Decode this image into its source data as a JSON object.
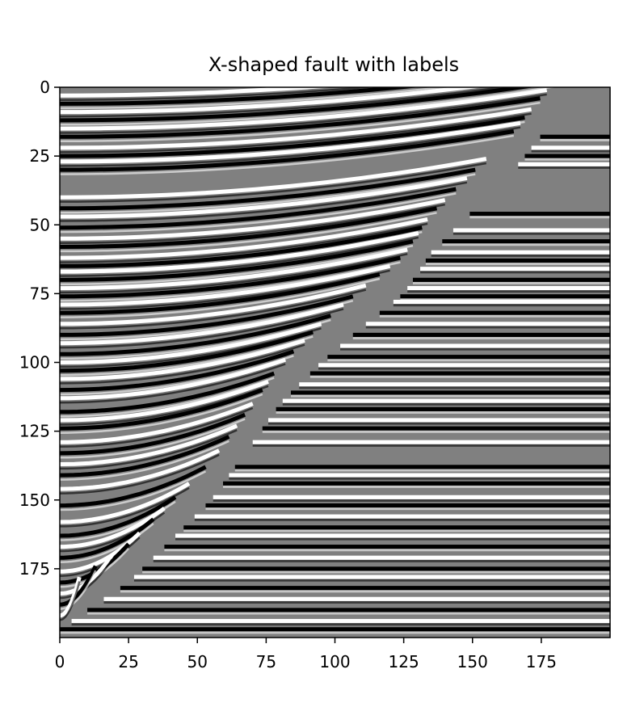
{
  "chart_data": {
    "type": "heatmap",
    "title": "X-shaped fault with labels",
    "xlabel": "",
    "ylabel": "",
    "colormap": "gray",
    "colors": {
      "low": "#000000",
      "mid": "#808080",
      "high": "#ffffff"
    },
    "grid": false,
    "xlim": [
      0,
      200
    ],
    "ylim": [
      200,
      0
    ],
    "x_ticks": [
      0,
      25,
      50,
      75,
      100,
      125,
      150,
      175
    ],
    "y_ticks": [
      0,
      25,
      50,
      75,
      100,
      125,
      150,
      175
    ],
    "x_tick_labels": [
      "0",
      "25",
      "50",
      "75",
      "100",
      "125",
      "150",
      "175"
    ],
    "y_tick_labels": [
      "0",
      "25",
      "50",
      "75",
      "100",
      "125",
      "150",
      "175"
    ],
    "fault_line": {
      "x": [
        200,
        190,
        177,
        165,
        150,
        135,
        125,
        110,
        95,
        80,
        68,
        55,
        40,
        25,
        10,
        0
      ],
      "y": [
        0,
        5,
        15,
        30,
        45,
        60,
        75,
        87,
        100,
        115,
        132,
        150,
        165,
        180,
        190,
        197
      ]
    },
    "upper_block_reflector_depths": [
      3,
      6,
      9,
      12,
      15,
      18,
      22,
      25,
      27,
      30,
      40,
      44,
      47,
      51,
      55,
      58,
      62,
      65,
      67,
      70,
      73,
      76,
      79,
      82,
      86,
      90,
      93,
      97,
      100,
      103,
      106,
      110,
      113,
      118,
      121,
      124,
      129,
      133,
      137,
      141,
      146,
      152,
      158,
      163,
      167,
      171,
      176,
      180,
      184,
      188,
      192
    ],
    "lower_block_reflector_depths": [
      18,
      22,
      25,
      28,
      46,
      52,
      56,
      60,
      63,
      66,
      70,
      73,
      76,
      78,
      82,
      86,
      90,
      94,
      98,
      101,
      104,
      108,
      111,
      114,
      117,
      121,
      124,
      129,
      138,
      141,
      144,
      149,
      152,
      156,
      160,
      163,
      167,
      171,
      175,
      178,
      182,
      186,
      190,
      194,
      197
    ]
  }
}
